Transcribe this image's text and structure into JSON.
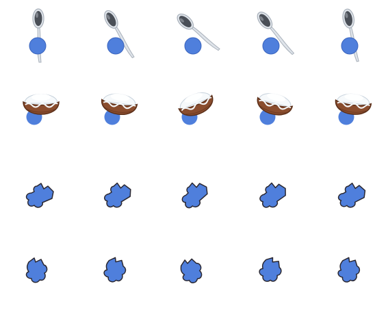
{
  "colors": {
    "background": "#ffffff",
    "marker": "#4f7fdc",
    "marker_dark": "#3a64bd",
    "spoon_light": "#dfe4ea",
    "spoon_mid": "#a8b0ba",
    "spoon_dark": "#4a4f57",
    "shell_brown": "#8a4d2e",
    "shell_dark": "#5b2f19",
    "coconut_white": "#f6f9fb",
    "coconut_shadow": "#c7d2dc",
    "outline": "#2a2730"
  },
  "rows": [
    {
      "kind": "spoon",
      "icon": "spoon-icon",
      "frames": [
        {
          "rotation_deg": 0
        },
        {
          "rotation_deg": -28
        },
        {
          "rotation_deg": -48
        },
        {
          "rotation_deg": -38
        },
        {
          "rotation_deg": -10
        }
      ]
    },
    {
      "kind": "coconut-bowl",
      "icon": "coconut-bowl-icon",
      "frames": [
        {
          "rotation_deg": 0
        },
        {
          "rotation_deg": 8
        },
        {
          "rotation_deg": -22
        },
        {
          "rotation_deg": 14
        },
        {
          "rotation_deg": 6
        }
      ]
    },
    {
      "kind": "blob-piece",
      "icon": "blob-piece-icon",
      "frames": [
        {
          "rotation_deg": 0
        },
        {
          "rotation_deg": -8
        },
        {
          "rotation_deg": -18
        },
        {
          "rotation_deg": -12
        },
        {
          "rotation_deg": -4
        }
      ]
    },
    {
      "kind": "blob-piece-alt",
      "icon": "blob-piece-alt-icon",
      "frames": [
        {
          "rotation_deg": 0
        },
        {
          "rotation_deg": 12
        },
        {
          "rotation_deg": -20
        },
        {
          "rotation_deg": 20
        },
        {
          "rotation_deg": 10
        }
      ]
    }
  ]
}
